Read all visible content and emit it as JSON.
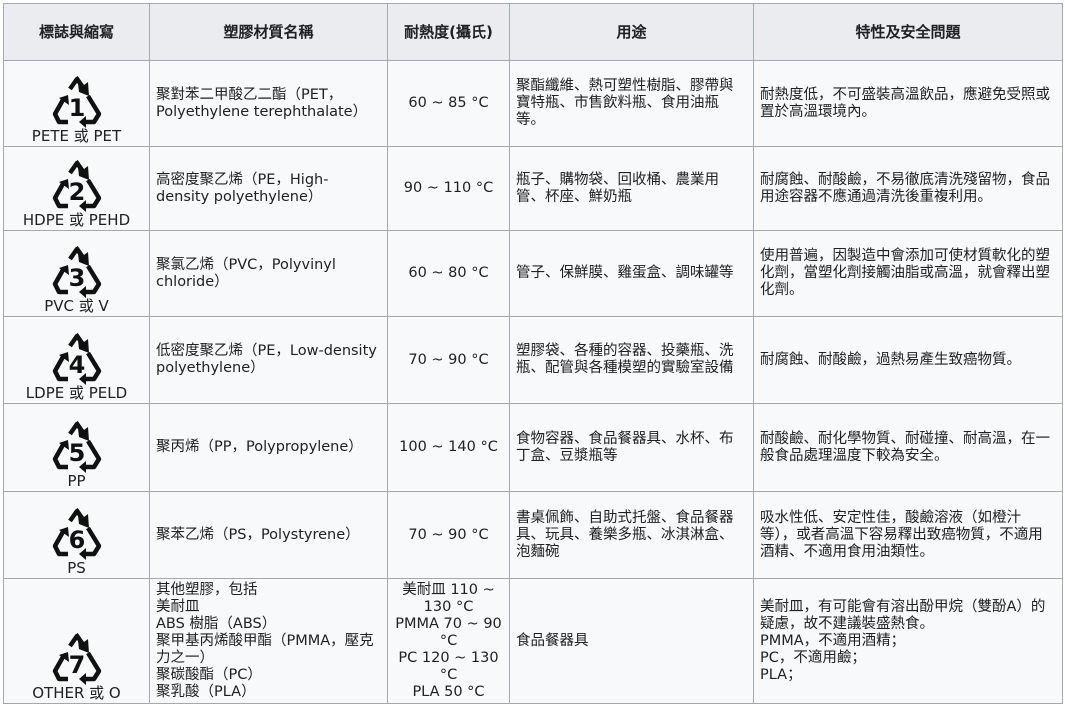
{
  "headers": [
    "標誌與縮寫",
    "塑膠材質名稱",
    "耐熱度(攝氏)",
    "用途",
    "特性及安全問題"
  ],
  "rows": [
    {
      "code": "1",
      "icon": "recycle-triangle-icon",
      "abbr": "PETE 或 PET",
      "name": [
        "聚對苯二甲酸乙二酯（PET，Polyethylene terephthalate）"
      ],
      "temp": [
        "60 ~ 85 °C"
      ],
      "use": "聚酯纖維、熱可塑性樹脂、膠帶與寶特瓶、市售飲料瓶、食用油瓶等。",
      "safety": [
        "耐熱度低，不可盛裝高溫飲品，應避免受照或置於高溫環境內。"
      ]
    },
    {
      "code": "2",
      "icon": "recycle-triangle-icon",
      "abbr": "HDPE 或 PEHD",
      "name": [
        "高密度聚乙烯（PE，High-density polyethylene）"
      ],
      "temp": [
        "90 ~ 110 °C"
      ],
      "use": "瓶子、購物袋、回收桶、農業用管、杯座、鮮奶瓶",
      "safety": [
        "耐腐蝕、耐酸鹼，不易徹底清洗殘留物，食品用途容器不應通過清洗後重複利用。"
      ]
    },
    {
      "code": "3",
      "icon": "recycle-triangle-icon",
      "abbr": "PVC 或 V",
      "name": [
        "聚氯乙烯（PVC，Polyvinyl chloride）"
      ],
      "temp": [
        "60 ~ 80 °C"
      ],
      "use": "管子、保鮮膜、雞蛋盒、調味罐等",
      "safety": [
        "使用普遍，因製造中會添加可使材質軟化的塑化劑，當塑化劑接觸油脂或高溫，就會釋出塑化劑。"
      ]
    },
    {
      "code": "4",
      "icon": "recycle-triangle-icon",
      "abbr": "LDPE 或 PELD",
      "name": [
        "低密度聚乙烯（PE，Low-density polyethylene）"
      ],
      "temp": [
        "70 ~ 90 °C"
      ],
      "use": "塑膠袋、各種的容器、投藥瓶、洗瓶、配管與各種模塑的實驗室設備",
      "safety": [
        "耐腐蝕、耐酸鹼，過熱易產生致癌物質。"
      ]
    },
    {
      "code": "5",
      "icon": "recycle-triangle-icon",
      "abbr": "PP",
      "name": [
        "聚丙烯（PP，Polypropylene）"
      ],
      "temp": [
        "100 ~ 140 °C"
      ],
      "use": "食物容器、食品餐器具、水杯、布丁盒、豆漿瓶等",
      "safety": [
        "耐酸鹼、耐化學物質、耐碰撞、耐高溫，在一般食品處理溫度下較為安全。"
      ]
    },
    {
      "code": "6",
      "icon": "recycle-triangle-icon",
      "abbr": "PS",
      "name": [
        "聚苯乙烯（PS，Polystyrene）"
      ],
      "temp": [
        "70 ~ 90 °C"
      ],
      "use": "書桌佩飾、自助式托盤、食品餐器具、玩具、養樂多瓶、冰淇淋盒、泡麵碗",
      "safety": [
        "吸水性低、安定性佳，酸鹼溶液（如橙汁等），或者高溫下容易釋出致癌物質，不適用酒精、不適用食用油類性。"
      ]
    },
    {
      "code": "7",
      "icon": "recycle-triangle-icon",
      "abbr": "OTHER 或 O",
      "name": [
        "其他塑膠，包括",
        "美耐皿",
        "ABS 樹脂（ABS）",
        "聚甲基丙烯酸甲酯（PMMA，壓克力之一）",
        "聚碳酸酯（PC）",
        "聚乳酸（PLA）"
      ],
      "temp": [
        "美耐皿 110 ~ 130 °C",
        "PMMA 70 ~ 90 °C",
        "PC 120 ~ 130 °C",
        "PLA 50 °C"
      ],
      "use": "食品餐器具",
      "safety": [
        "美耐皿，有可能會有溶出酚甲烷（雙酚A）的疑慮，故不建議裝盛熱食。",
        "PMMA，不適用酒精；",
        "PC，不適用鹼；",
        "PLA；"
      ]
    }
  ]
}
